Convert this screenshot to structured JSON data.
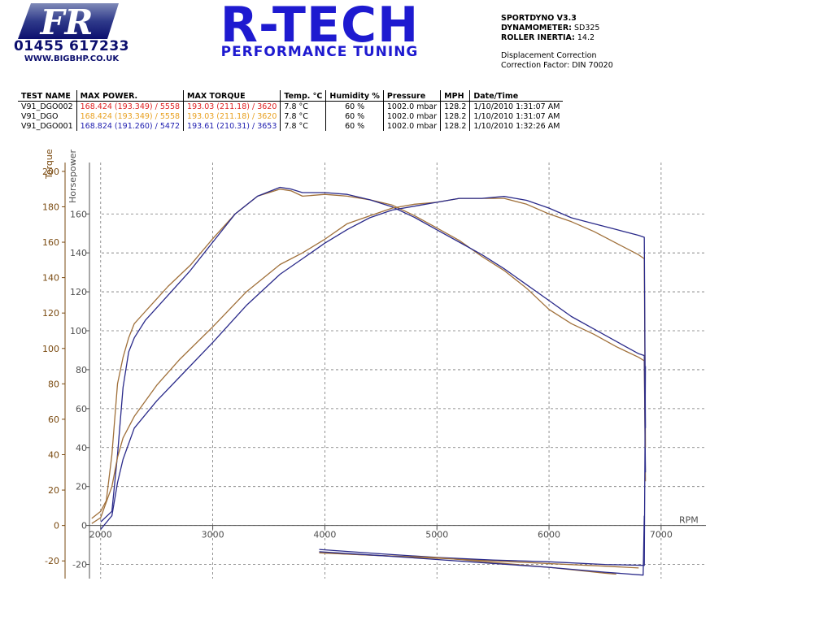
{
  "header": {
    "logo_letters": "FR",
    "phone": "01455 617233",
    "website": "WWW.BIGBHP.CO.UK",
    "brand_title": "R-TECH",
    "brand_subtitle": "PERFORMANCE TUNING",
    "colors": {
      "brand_blue": "#1e1ad0",
      "logo_navy": "#0c0f6e"
    }
  },
  "info": {
    "software": "SPORTDYNO V3.3",
    "dynamometer_label": "DYNAMOMETER:",
    "dynamometer_value": "SD325",
    "inertia_label": "ROLLER INERTIA:",
    "inertia_value": "14.2",
    "displacement": "Displacement Correction",
    "correction": "Correction Factor: DIN 70020"
  },
  "results": {
    "headers": [
      "TEST NAME",
      "MAX POWER.",
      "MAX TORQUE",
      "Temp. °C",
      "Humidity %",
      "Pressure",
      "MPH",
      "Date/Time"
    ],
    "rows": [
      {
        "name": "V91_DGO002",
        "power": "168.424 (193.349) / 5558",
        "torque": "193.03 (211.18) / 3620",
        "temp": "7.8 °C",
        "humidity": "60 %",
        "pressure": "1002.0 mbar",
        "mph": "128.2",
        "datetime": "1/10/2010 1:31:07 AM",
        "color": "#e02020"
      },
      {
        "name": "V91_DGO",
        "power": "168.424 (193.349) / 5558",
        "torque": "193.03 (211.18) / 3620",
        "temp": "7.8 °C",
        "humidity": "60 %",
        "pressure": "1002.0 mbar",
        "mph": "128.2",
        "datetime": "1/10/2010 1:31:07 AM",
        "color": "#e8a020"
      },
      {
        "name": "V91_DGO001",
        "power": "168.824 (191.260) / 5472",
        "torque": "193.61 (210.31) / 3653",
        "temp": "7.8 °C",
        "humidity": "60 %",
        "pressure": "1002.0 mbar",
        "mph": "128.2",
        "datetime": "1/10/2010 1:32:26 AM",
        "color": "#2020b0"
      }
    ]
  },
  "chart_data": {
    "type": "line",
    "xlabel": "RPM",
    "ylabel_left": "Torque",
    "ylabel_right": "Horsepower",
    "x_ticks": [
      2000,
      3000,
      4000,
      5000,
      6000,
      7000
    ],
    "torque_ticks": [
      -20,
      0,
      20,
      40,
      60,
      80,
      100,
      120,
      140,
      160,
      180,
      200
    ],
    "hp_ticks": [
      -20,
      0,
      20,
      40,
      60,
      80,
      100,
      120,
      140,
      160
    ],
    "xlim": [
      1900,
      7400
    ],
    "torque_ylim": [
      -30,
      205
    ],
    "hp_ylim": [
      -27.3,
      186.4
    ],
    "grid": true,
    "series": [
      {
        "measure": "torque",
        "run": "V91_DGO",
        "color": "#a0703a",
        "x": [
          1920,
          2000,
          2050,
          2100,
          2150,
          2200,
          2250,
          2300,
          2400,
          2500,
          2600,
          2800,
          3000,
          3200,
          3400,
          3600,
          3700,
          3800,
          4000,
          4200,
          4400,
          4600,
          4800,
          5000,
          5200,
          5400,
          5600,
          5800,
          6000,
          6200,
          6400,
          6600,
          6800,
          6850,
          6860
        ],
        "y": [
          4,
          8,
          14,
          40,
          80,
          95,
          106,
          114,
          121,
          128,
          135,
          147,
          162,
          176,
          186,
          190,
          189,
          186,
          187,
          186,
          184,
          181,
          175,
          168,
          161,
          152,
          144,
          134,
          122,
          114,
          108,
          101,
          95,
          93,
          25
        ]
      },
      {
        "measure": "torque",
        "run": "V91_DGO001",
        "color": "#2a2a8a",
        "x": [
          2000,
          2100,
          2150,
          2200,
          2250,
          2300,
          2400,
          2500,
          2600,
          2800,
          3000,
          3200,
          3400,
          3600,
          3700,
          3800,
          4000,
          4200,
          4400,
          4600,
          4800,
          5000,
          5200,
          5400,
          5600,
          5800,
          6000,
          6200,
          6400,
          6600,
          6800,
          6850,
          6860
        ],
        "y": [
          2,
          8,
          40,
          78,
          98,
          106,
          116,
          123,
          130,
          144,
          160,
          176,
          186,
          191,
          190,
          188,
          188,
          187,
          184,
          180,
          174,
          167,
          160,
          153,
          145,
          136,
          127,
          118,
          111,
          104,
          97,
          96,
          30
        ]
      },
      {
        "measure": "horsepower",
        "run": "V91_DGO",
        "color": "#a0703a",
        "x": [
          1920,
          2000,
          2100,
          2150,
          2200,
          2300,
          2500,
          2700,
          3000,
          3300,
          3600,
          3800,
          4000,
          4200,
          4400,
          4600,
          4800,
          5000,
          5200,
          5400,
          5600,
          5800,
          6000,
          6200,
          6400,
          6600,
          6800,
          6850,
          6860
        ],
        "y": [
          1,
          4,
          20,
          35,
          45,
          56,
          72,
          85,
          102,
          120,
          134,
          140,
          147,
          155,
          159,
          163,
          165,
          166,
          168,
          168,
          168,
          165,
          160,
          156,
          151,
          145,
          139,
          137,
          40
        ]
      },
      {
        "measure": "horsepower",
        "run": "V91_DGO001",
        "color": "#2a2a8a",
        "x": [
          2000,
          2100,
          2150,
          2200,
          2300,
          2500,
          2700,
          3000,
          3300,
          3600,
          3800,
          4000,
          4200,
          4400,
          4600,
          4800,
          5000,
          5200,
          5400,
          5600,
          5800,
          6000,
          6200,
          6400,
          6600,
          6800,
          6850,
          6860
        ],
        "y": [
          -2,
          5,
          22,
          34,
          50,
          64,
          76,
          94,
          113,
          129,
          137,
          145,
          152,
          158,
          162,
          164,
          166,
          168,
          168,
          169,
          167,
          163,
          158,
          155,
          152,
          149,
          148,
          50
        ]
      },
      {
        "measure": "torque",
        "run": "V91_DGO (coastdown)",
        "color": "#a0703a",
        "x": [
          3950,
          4500,
          5000,
          5500,
          6000,
          6500,
          6800
        ],
        "y": [
          -15.5,
          -17,
          -18.5,
          -20,
          -21.5,
          -23,
          -24
        ]
      },
      {
        "measure": "torque",
        "run": "V91_DGO001 (coastdown)",
        "color": "#2a2a8a",
        "x": [
          3950,
          4500,
          5000,
          5500,
          6000,
          6500,
          6850,
          6860
        ],
        "y": [
          -13.5,
          -16,
          -18,
          -19.5,
          -20.5,
          -22,
          -22.5,
          90
        ]
      },
      {
        "measure": "horsepower",
        "run": "V91_DGO (coastdown)",
        "color": "#a0703a",
        "x": [
          3950,
          4500,
          5000,
          5500,
          6000,
          6500,
          6600
        ],
        "y": [
          -14,
          -15.5,
          -16.5,
          -19,
          -21.5,
          -24.5,
          -25
        ]
      },
      {
        "measure": "horsepower",
        "run": "V91_DGO001 (coastdown)",
        "color": "#2a2a8a",
        "x": [
          3950,
          4500,
          5000,
          5500,
          6000,
          6500,
          6840,
          6850
        ],
        "y": [
          -13.5,
          -15.5,
          -17.5,
          -19.5,
          -21.5,
          -24,
          -25.5,
          5
        ]
      }
    ]
  }
}
